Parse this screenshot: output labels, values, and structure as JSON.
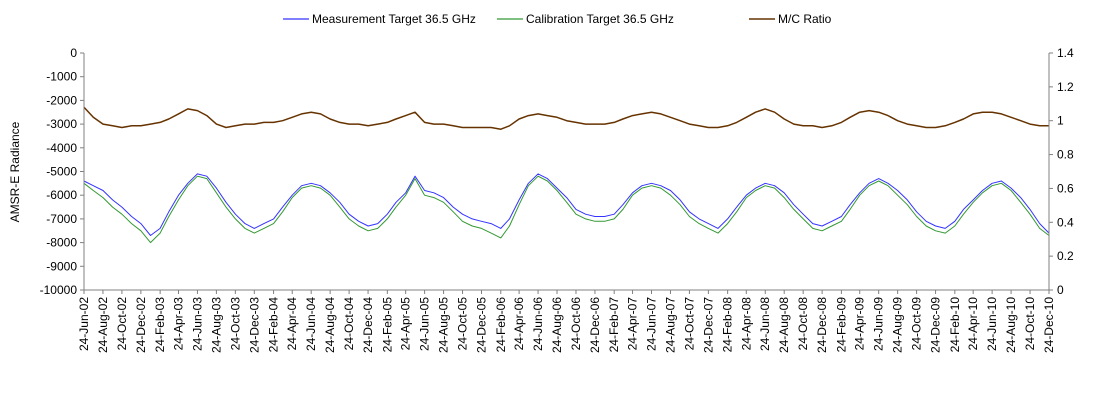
{
  "chart_data": {
    "type": "line",
    "title": "",
    "legend": {
      "placement": "top",
      "entries": [
        "Measurement Target 36.5 GHz",
        "Calibration Target 36.5 GHz",
        "M/C Ratio"
      ]
    },
    "y_left": {
      "label": "AMSR-E Radiance",
      "range": [
        -10000,
        0
      ],
      "ticks": [
        "0",
        "-1000",
        "-2000",
        "-3000",
        "-4000",
        "-5000",
        "-6000",
        "-7000",
        "-8000",
        "-9000",
        "-10000"
      ]
    },
    "y_right": {
      "label": "",
      "range": [
        0,
        1.4
      ],
      "ticks": [
        "1.4",
        "1.2",
        "1",
        "0.8",
        "0.6",
        "0.4",
        "0.2",
        "0"
      ]
    },
    "x": {
      "start": "2002-06-24",
      "end": "2010-12-24",
      "tick_labels": [
        "24-Jun-02",
        "24-Aug-02",
        "24-Oct-02",
        "24-Dec-02",
        "24-Feb-03",
        "24-Apr-03",
        "24-Jun-03",
        "24-Aug-03",
        "24-Oct-03",
        "24-Dec-03",
        "24-Feb-04",
        "24-Apr-04",
        "24-Jun-04",
        "24-Aug-04",
        "24-Oct-04",
        "24-Dec-04",
        "24-Feb-05",
        "24-Apr-05",
        "24-Jun-05",
        "24-Aug-05",
        "24-Oct-05",
        "24-Dec-05",
        "24-Feb-06",
        "24-Apr-06",
        "24-Jun-06",
        "24-Aug-06",
        "24-Oct-06",
        "24-Dec-06",
        "24-Feb-07",
        "24-Apr-07",
        "24-Jun-07",
        "24-Aug-07",
        "24-Oct-07",
        "24-Dec-07",
        "24-Feb-08",
        "24-Apr-08",
        "24-Jun-08",
        "24-Aug-08",
        "24-Oct-08",
        "24-Dec-08",
        "24-Feb-09",
        "24-Apr-09",
        "24-Jun-09",
        "24-Aug-09",
        "24-Oct-09",
        "24-Dec-09",
        "24-Feb-10",
        "24-Apr-10",
        "24-Jun-10",
        "24-Aug-10",
        "24-Oct-10",
        "24-Dec-10"
      ]
    },
    "gridlines": false,
    "series": [
      {
        "name": "Measurement Target 36.5 GHz",
        "axis": "left",
        "color": "#3333ff",
        "x": [
          "2002-06-24",
          "2002-07-24",
          "2002-08-24",
          "2002-09-24",
          "2002-10-24",
          "2002-11-24",
          "2002-12-24",
          "2003-01-24",
          "2003-02-24",
          "2003-03-24",
          "2003-04-24",
          "2003-05-24",
          "2003-06-24",
          "2003-07-24",
          "2003-08-24",
          "2003-09-24",
          "2003-10-24",
          "2003-11-24",
          "2003-12-24",
          "2004-01-24",
          "2004-02-24",
          "2004-03-24",
          "2004-04-24",
          "2004-05-24",
          "2004-06-24",
          "2004-07-24",
          "2004-08-24",
          "2004-09-24",
          "2004-10-24",
          "2004-11-24",
          "2004-12-24",
          "2005-01-24",
          "2005-02-24",
          "2005-03-24",
          "2005-04-24",
          "2005-05-24",
          "2005-06-24",
          "2005-07-24",
          "2005-08-24",
          "2005-09-24",
          "2005-10-24",
          "2005-11-24",
          "2005-12-24",
          "2006-01-24",
          "2006-02-24",
          "2006-03-24",
          "2006-04-24",
          "2006-05-24",
          "2006-06-24",
          "2006-07-24",
          "2006-08-24",
          "2006-09-24",
          "2006-10-24",
          "2006-11-24",
          "2006-12-24",
          "2007-01-24",
          "2007-02-24",
          "2007-03-24",
          "2007-04-24",
          "2007-05-24",
          "2007-06-24",
          "2007-07-24",
          "2007-08-24",
          "2007-09-24",
          "2007-10-24",
          "2007-11-24",
          "2007-12-24",
          "2008-01-24",
          "2008-02-24",
          "2008-03-24",
          "2008-04-24",
          "2008-05-24",
          "2008-06-24",
          "2008-07-24",
          "2008-08-24",
          "2008-09-24",
          "2008-10-24",
          "2008-11-24",
          "2008-12-24",
          "2009-01-24",
          "2009-02-24",
          "2009-03-24",
          "2009-04-24",
          "2009-05-24",
          "2009-06-24",
          "2009-07-24",
          "2009-08-24",
          "2009-09-24",
          "2009-10-24",
          "2009-11-24",
          "2009-12-24",
          "2010-01-24",
          "2010-02-24",
          "2010-03-24",
          "2010-04-24",
          "2010-05-24",
          "2010-06-24",
          "2010-07-24",
          "2010-08-24",
          "2010-09-24",
          "2010-10-24",
          "2010-11-24",
          "2010-12-24"
        ],
        "y": [
          -5400,
          -5600,
          -5800,
          -6200,
          -6500,
          -6900,
          -7200,
          -7700,
          -7400,
          -6700,
          -6000,
          -5500,
          -5100,
          -5200,
          -5700,
          -6300,
          -6800,
          -7200,
          -7400,
          -7200,
          -7000,
          -6500,
          -6000,
          -5600,
          -5500,
          -5600,
          -5900,
          -6300,
          -6800,
          -7100,
          -7300,
          -7200,
          -6800,
          -6300,
          -5900,
          -5200,
          -5800,
          -5900,
          -6100,
          -6500,
          -6800,
          -7000,
          -7100,
          -7200,
          -7400,
          -7000,
          -6200,
          -5500,
          -5100,
          -5300,
          -5700,
          -6100,
          -6600,
          -6800,
          -6900,
          -6900,
          -6800,
          -6400,
          -5900,
          -5600,
          -5500,
          -5600,
          -5800,
          -6200,
          -6700,
          -7000,
          -7200,
          -7400,
          -7000,
          -6500,
          -6000,
          -5700,
          -5500,
          -5600,
          -5900,
          -6400,
          -6800,
          -7200,
          -7300,
          -7100,
          -6900,
          -6400,
          -5900,
          -5500,
          -5300,
          -5500,
          -5800,
          -6200,
          -6700,
          -7100,
          -7300,
          -7400,
          -7100,
          -6600,
          -6200,
          -5800,
          -5500,
          -5400,
          -5700,
          -6100,
          -6600,
          -7200,
          -7600
        ]
      },
      {
        "name": "Calibration Target 36.5 GHz",
        "axis": "left",
        "color": "#339933",
        "x": [
          "2002-06-24",
          "2002-07-24",
          "2002-08-24",
          "2002-09-24",
          "2002-10-24",
          "2002-11-24",
          "2002-12-24",
          "2003-01-24",
          "2003-02-24",
          "2003-03-24",
          "2003-04-24",
          "2003-05-24",
          "2003-06-24",
          "2003-07-24",
          "2003-08-24",
          "2003-09-24",
          "2003-10-24",
          "2003-11-24",
          "2003-12-24",
          "2004-01-24",
          "2004-02-24",
          "2004-03-24",
          "2004-04-24",
          "2004-05-24",
          "2004-06-24",
          "2004-07-24",
          "2004-08-24",
          "2004-09-24",
          "2004-10-24",
          "2004-11-24",
          "2004-12-24",
          "2005-01-24",
          "2005-02-24",
          "2005-03-24",
          "2005-04-24",
          "2005-05-24",
          "2005-06-24",
          "2005-07-24",
          "2005-08-24",
          "2005-09-24",
          "2005-10-24",
          "2005-11-24",
          "2005-12-24",
          "2006-01-24",
          "2006-02-24",
          "2006-03-24",
          "2006-04-24",
          "2006-05-24",
          "2006-06-24",
          "2006-07-24",
          "2006-08-24",
          "2006-09-24",
          "2006-10-24",
          "2006-11-24",
          "2006-12-24",
          "2007-01-24",
          "2007-02-24",
          "2007-03-24",
          "2007-04-24",
          "2007-05-24",
          "2007-06-24",
          "2007-07-24",
          "2007-08-24",
          "2007-09-24",
          "2007-10-24",
          "2007-11-24",
          "2007-12-24",
          "2008-01-24",
          "2008-02-24",
          "2008-03-24",
          "2008-04-24",
          "2008-05-24",
          "2008-06-24",
          "2008-07-24",
          "2008-08-24",
          "2008-09-24",
          "2008-10-24",
          "2008-11-24",
          "2008-12-24",
          "2009-01-24",
          "2009-02-24",
          "2009-03-24",
          "2009-04-24",
          "2009-05-24",
          "2009-06-24",
          "2009-07-24",
          "2009-08-24",
          "2009-09-24",
          "2009-10-24",
          "2009-11-24",
          "2009-12-24",
          "2010-01-24",
          "2010-02-24",
          "2010-03-24",
          "2010-04-24",
          "2010-05-24",
          "2010-06-24",
          "2010-07-24",
          "2010-08-24",
          "2010-09-24",
          "2010-10-24",
          "2010-11-24",
          "2010-12-24"
        ],
        "y": [
          -5500,
          -5800,
          -6100,
          -6500,
          -6800,
          -7200,
          -7500,
          -8000,
          -7600,
          -6900,
          -6200,
          -5600,
          -5200,
          -5300,
          -5900,
          -6500,
          -7000,
          -7400,
          -7600,
          -7400,
          -7200,
          -6700,
          -6100,
          -5700,
          -5600,
          -5700,
          -6000,
          -6500,
          -7000,
          -7300,
          -7500,
          -7400,
          -7000,
          -6500,
          -6000,
          -5300,
          -6000,
          -6100,
          -6300,
          -6700,
          -7100,
          -7300,
          -7400,
          -7600,
          -7800,
          -7300,
          -6400,
          -5600,
          -5200,
          -5400,
          -5800,
          -6300,
          -6800,
          -7000,
          -7100,
          -7100,
          -7000,
          -6600,
          -6000,
          -5700,
          -5600,
          -5700,
          -6000,
          -6400,
          -6900,
          -7200,
          -7400,
          -7600,
          -7200,
          -6700,
          -6100,
          -5800,
          -5600,
          -5700,
          -6100,
          -6600,
          -7000,
          -7400,
          -7500,
          -7300,
          -7100,
          -6600,
          -6000,
          -5600,
          -5400,
          -5600,
          -6000,
          -6400,
          -6900,
          -7300,
          -7500,
          -7600,
          -7300,
          -6800,
          -6300,
          -5900,
          -5600,
          -5500,
          -5800,
          -6300,
          -6800,
          -7400,
          -7700
        ]
      },
      {
        "name": "M/C Ratio",
        "axis": "right",
        "color": "#663300",
        "x": [
          "2002-06-24",
          "2002-07-24",
          "2002-08-24",
          "2002-09-24",
          "2002-10-24",
          "2002-11-24",
          "2002-12-24",
          "2003-01-24",
          "2003-02-24",
          "2003-03-24",
          "2003-04-24",
          "2003-05-24",
          "2003-06-24",
          "2003-07-24",
          "2003-08-24",
          "2003-09-24",
          "2003-10-24",
          "2003-11-24",
          "2003-12-24",
          "2004-01-24",
          "2004-02-24",
          "2004-03-24",
          "2004-04-24",
          "2004-05-24",
          "2004-06-24",
          "2004-07-24",
          "2004-08-24",
          "2004-09-24",
          "2004-10-24",
          "2004-11-24",
          "2004-12-24",
          "2005-01-24",
          "2005-02-24",
          "2005-03-24",
          "2005-04-24",
          "2005-05-24",
          "2005-06-24",
          "2005-07-24",
          "2005-08-24",
          "2005-09-24",
          "2005-10-24",
          "2005-11-24",
          "2005-12-24",
          "2006-01-24",
          "2006-02-24",
          "2006-03-24",
          "2006-04-24",
          "2006-05-24",
          "2006-06-24",
          "2006-07-24",
          "2006-08-24",
          "2006-09-24",
          "2006-10-24",
          "2006-11-24",
          "2006-12-24",
          "2007-01-24",
          "2007-02-24",
          "2007-03-24",
          "2007-04-24",
          "2007-05-24",
          "2007-06-24",
          "2007-07-24",
          "2007-08-24",
          "2007-09-24",
          "2007-10-24",
          "2007-11-24",
          "2007-12-24",
          "2008-01-24",
          "2008-02-24",
          "2008-03-24",
          "2008-04-24",
          "2008-05-24",
          "2008-06-24",
          "2008-07-24",
          "2008-08-24",
          "2008-09-24",
          "2008-10-24",
          "2008-11-24",
          "2008-12-24",
          "2009-01-24",
          "2009-02-24",
          "2009-03-24",
          "2009-04-24",
          "2009-05-24",
          "2009-06-24",
          "2009-07-24",
          "2009-08-24",
          "2009-09-24",
          "2009-10-24",
          "2009-11-24",
          "2009-12-24",
          "2010-01-24",
          "2010-02-24",
          "2010-03-24",
          "2010-04-24",
          "2010-05-24",
          "2010-06-24",
          "2010-07-24",
          "2010-08-24",
          "2010-09-24",
          "2010-10-24",
          "2010-11-24",
          "2010-12-24"
        ],
        "y": [
          1.08,
          1.02,
          0.98,
          0.97,
          0.96,
          0.97,
          0.97,
          0.98,
          0.99,
          1.01,
          1.04,
          1.07,
          1.06,
          1.03,
          0.98,
          0.96,
          0.97,
          0.98,
          0.98,
          0.99,
          0.99,
          1.0,
          1.02,
          1.04,
          1.05,
          1.04,
          1.01,
          0.99,
          0.98,
          0.98,
          0.97,
          0.98,
          0.99,
          1.01,
          1.03,
          1.05,
          0.99,
          0.98,
          0.98,
          0.97,
          0.96,
          0.96,
          0.96,
          0.96,
          0.95,
          0.97,
          1.01,
          1.03,
          1.04,
          1.03,
          1.02,
          1.0,
          0.99,
          0.98,
          0.98,
          0.98,
          0.99,
          1.01,
          1.03,
          1.04,
          1.05,
          1.04,
          1.02,
          1.0,
          0.98,
          0.97,
          0.96,
          0.96,
          0.97,
          0.99,
          1.02,
          1.05,
          1.07,
          1.05,
          1.01,
          0.98,
          0.97,
          0.97,
          0.96,
          0.97,
          0.99,
          1.02,
          1.05,
          1.06,
          1.05,
          1.03,
          1.0,
          0.98,
          0.97,
          0.96,
          0.96,
          0.97,
          0.99,
          1.01,
          1.04,
          1.05,
          1.05,
          1.04,
          1.02,
          1.0,
          0.98,
          0.97,
          0.97
        ]
      }
    ]
  }
}
